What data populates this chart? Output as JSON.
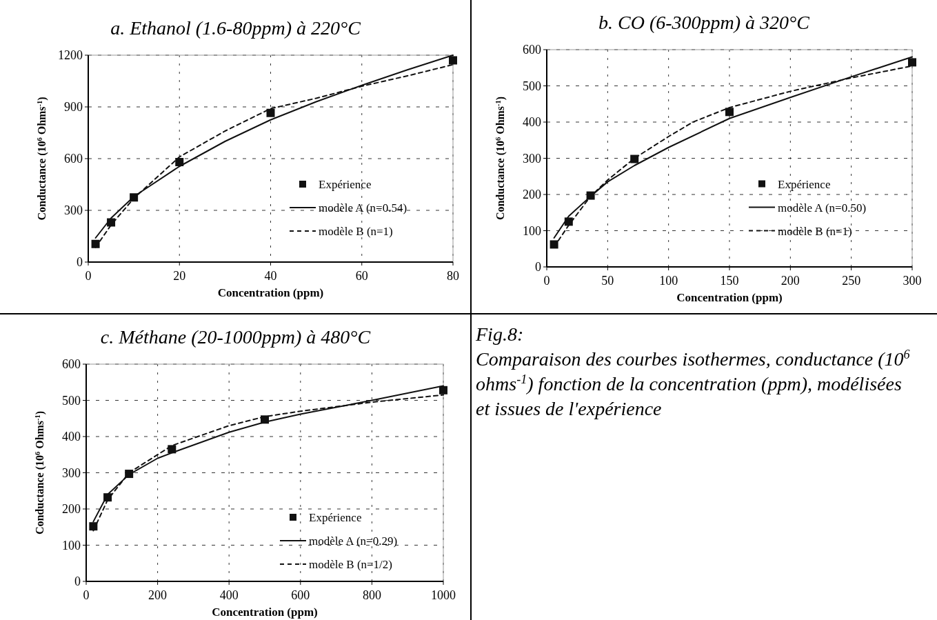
{
  "chart_data": [
    {
      "type": "line",
      "title": "a. Ethanol (1.6-80ppm) à 220°C",
      "xlabel": "Concentration (ppm)",
      "ylabel": "Conductance (10$^{6}$ Ohms$^{-1}$)",
      "xlim": [
        0,
        80
      ],
      "xticks": [
        0,
        20,
        40,
        60,
        80
      ],
      "ylim": [
        0,
        1200
      ],
      "yticks": [
        0,
        300,
        600,
        900,
        1200
      ],
      "grid": true,
      "legend": "right",
      "series": [
        {
          "name": "Expérience",
          "type": "scatter",
          "marker": "square",
          "color": "#111111",
          "x": [
            1.6,
            5,
            10,
            20,
            40,
            80
          ],
          "values": [
            105,
            230,
            375,
            580,
            865,
            1170
          ]
        },
        {
          "name": "modèle A (n=0.54)",
          "type": "line",
          "line_style": "solid",
          "color": "#111111",
          "x": [
            1.6,
            5,
            10,
            20,
            30,
            40,
            50,
            60,
            70,
            80
          ],
          "values": [
            140,
            255,
            380,
            555,
            700,
            825,
            930,
            1025,
            1115,
            1200
          ]
        },
        {
          "name": "modèle B (n=1)",
          "type": "line",
          "line_style": "dashed",
          "color": "#111111",
          "x": [
            1.6,
            5,
            10,
            15,
            20,
            30,
            40,
            50,
            60,
            70,
            80
          ],
          "values": [
            85,
            215,
            370,
            490,
            610,
            760,
            890,
            950,
            1020,
            1080,
            1145
          ]
        }
      ]
    },
    {
      "type": "line",
      "title": "b. CO (6-300ppm) à 320°C",
      "xlabel": "Concentration (ppm)",
      "ylabel": "Conductance (10$^{6}$ Ohms$^{-1}$)",
      "xlim": [
        0,
        300
      ],
      "xticks": [
        0,
        50,
        100,
        150,
        200,
        250,
        300
      ],
      "ylim": [
        0,
        600
      ],
      "yticks": [
        0,
        100,
        200,
        300,
        400,
        500,
        600
      ],
      "grid": true,
      "legend": "right",
      "series": [
        {
          "name": "Expérience",
          "type": "scatter",
          "marker": "square",
          "color": "#111111",
          "x": [
            6,
            18,
            36,
            72,
            150,
            300
          ],
          "values": [
            62,
            125,
            197,
            298,
            428,
            565
          ]
        },
        {
          "name": "modèle A (n=0.50)",
          "type": "line",
          "line_style": "solid",
          "color": "#111111",
          "x": [
            6,
            18,
            36,
            50,
            72,
            100,
            150,
            200,
            250,
            300
          ],
          "values": [
            80,
            140,
            195,
            235,
            280,
            330,
            410,
            468,
            525,
            580
          ]
        },
        {
          "name": "modèle B (n=1)",
          "type": "line",
          "line_style": "dashed",
          "color": "#111111",
          "x": [
            6,
            18,
            36,
            50,
            72,
            100,
            120,
            150,
            200,
            250,
            300
          ],
          "values": [
            55,
            115,
            195,
            240,
            300,
            360,
            400,
            440,
            485,
            522,
            555
          ]
        }
      ]
    },
    {
      "type": "line",
      "title": "c. Méthane (20-1000ppm) à 480°C",
      "xlabel": "Concentration (ppm)",
      "ylabel": "Conductance (10$^{6}$ Ohms$^{-1}$)",
      "xlim": [
        0,
        1000
      ],
      "xticks": [
        0,
        200,
        400,
        600,
        800,
        1000
      ],
      "ylim": [
        0,
        600
      ],
      "yticks": [
        0,
        100,
        200,
        300,
        400,
        500,
        600
      ],
      "grid": true,
      "legend": "bottom right",
      "series": [
        {
          "name": "Expérience",
          "type": "scatter",
          "marker": "square",
          "color": "#111111",
          "x": [
            20,
            60,
            120,
            240,
            500,
            1000
          ],
          "values": [
            152,
            232,
            297,
            365,
            447,
            528
          ]
        },
        {
          "name": "modèle A (n=0.29)",
          "type": "line",
          "line_style": "solid",
          "color": "#111111",
          "x": [
            20,
            60,
            120,
            200,
            240,
            400,
            500,
            600,
            800,
            1000
          ],
          "values": [
            165,
            240,
            295,
            340,
            355,
            412,
            440,
            462,
            500,
            540
          ]
        },
        {
          "name": "modèle B (n=1/2)",
          "type": "line",
          "line_style": "dashed",
          "color": "#111111",
          "x": [
            20,
            60,
            120,
            240,
            400,
            500,
            600,
            800,
            1000
          ],
          "values": [
            140,
            225,
            300,
            375,
            430,
            455,
            470,
            495,
            515
          ]
        }
      ]
    },
    {
      "type": "other",
      "title": "Fig.8:",
      "annotations": [
        "Comparaison des courbes isothermes, conductance (10$^{6}$ ohms$^{-1}$) fonction de la concentration (ppm), modélisées et issues de l'expérience"
      ]
    }
  ]
}
